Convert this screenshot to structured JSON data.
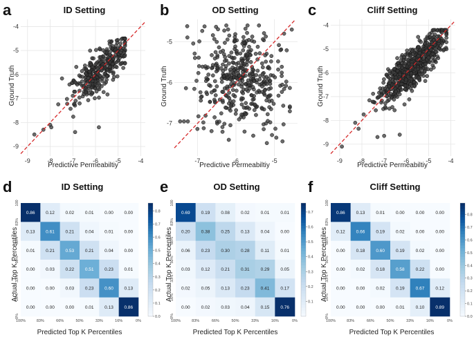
{
  "figure": {
    "panel_letters": [
      "a",
      "b",
      "c",
      "d",
      "e",
      "f"
    ]
  },
  "chart_data": [
    {
      "panel": "a",
      "type": "scatter",
      "title": "ID Setting",
      "xlabel": "Predictive Permeabiltiy",
      "ylabel": "Ground Truth",
      "xlim": [
        -9.3,
        -3.8
      ],
      "ylim": [
        -9.4,
        -3.7
      ],
      "xticks": [
        -9,
        -8,
        -7,
        -6,
        -5,
        -4
      ],
      "yticks": [
        -9,
        -8,
        -7,
        -6,
        -5,
        -4
      ],
      "diagonal": true,
      "grid": true,
      "cloud": {
        "n": 340,
        "center_x": -5.75,
        "center_y": -5.75,
        "spread_along": 0.85,
        "spread_across": 0.32,
        "x_range": [
          -8.2,
          -4.7
        ],
        "y_range": [
          -8.6,
          -4.5
        ],
        "seed": 11
      },
      "extra_points": [
        {
          "x": -8.7,
          "y": -8.5
        },
        {
          "x": -8.0,
          "y": -8.1
        },
        {
          "x": -7.95,
          "y": -8.2
        },
        {
          "x": -8.3,
          "y": -8.3
        },
        {
          "x": -5.85,
          "y": -8.2
        },
        {
          "x": -6.9,
          "y": -8.4
        }
      ]
    },
    {
      "panel": "b",
      "type": "scatter",
      "title": "OD Setting",
      "xlabel": "Predictive Permeabiltiy",
      "ylabel": "Ground Truth",
      "xlim": [
        -7.6,
        -4.4
      ],
      "ylim": [
        -7.8,
        -4.45
      ],
      "xticks": [
        -7,
        -6,
        -5
      ],
      "yticks": [
        -7,
        -6,
        -5
      ],
      "diagonal": true,
      "grid": true,
      "cloud": {
        "n": 420,
        "center_x": -5.9,
        "center_y": -5.95,
        "spread_along": 0.55,
        "spread_across": 0.62,
        "x_range": [
          -7.3,
          -4.6
        ],
        "y_range": [
          -7.65,
          -4.6
        ],
        "seed": 23
      },
      "extra_points": [
        {
          "x": -7.45,
          "y": -6.95
        },
        {
          "x": -7.35,
          "y": -6.95
        },
        {
          "x": -7.25,
          "y": -6.95
        },
        {
          "x": -4.75,
          "y": -4.8
        },
        {
          "x": -4.55,
          "y": -4.7
        }
      ]
    },
    {
      "panel": "c",
      "type": "scatter",
      "title": "Cliff Setting",
      "xlabel": "Predictive Permeabiltiy",
      "ylabel": "Ground Truth",
      "xlim": [
        -9.4,
        -3.8
      ],
      "ylim": [
        -9.5,
        -3.75
      ],
      "xticks": [
        -9,
        -8,
        -7,
        -6,
        -5,
        -4
      ],
      "yticks": [
        -9,
        -8,
        -7,
        -6,
        -5,
        -4
      ],
      "diagonal": true,
      "grid": true,
      "cloud": {
        "n": 650,
        "center_x": -5.75,
        "center_y": -5.75,
        "spread_along": 0.95,
        "spread_across": 0.3,
        "x_range": [
          -8.6,
          -4.2
        ],
        "y_range": [
          -8.8,
          -4.2
        ],
        "seed": 37
      },
      "extra_points": [
        {
          "x": -8.9,
          "y": -9.1
        },
        {
          "x": -8.3,
          "y": -8.1
        },
        {
          "x": -8.15,
          "y": -8.35
        },
        {
          "x": -7.3,
          "y": -8.7
        },
        {
          "x": -7.0,
          "y": -8.65
        },
        {
          "x": -6.3,
          "y": -8.6
        }
      ]
    },
    {
      "panel": "d",
      "type": "heatmap",
      "title": "ID Setting",
      "xlabel": "Predicted Top K Percentiles",
      "ylabel": "Actual Top K Percentiles",
      "xticklabels": [
        "100%",
        "83%",
        "66%",
        "50%",
        "33%",
        "16%",
        "0%"
      ],
      "yticklabels": [
        "100",
        "83%",
        "66%",
        "50%",
        "33%",
        "16%",
        "0%"
      ],
      "values": [
        [
          0.86,
          0.12,
          0.02,
          0.01,
          0.0,
          0.0
        ],
        [
          0.13,
          0.61,
          0.21,
          0.04,
          0.01,
          0.0
        ],
        [
          0.01,
          0.21,
          0.53,
          0.21,
          0.04,
          0.0
        ],
        [
          0.0,
          0.03,
          0.22,
          0.51,
          0.23,
          0.01
        ],
        [
          0.0,
          0.0,
          0.03,
          0.23,
          0.6,
          0.13
        ],
        [
          0.0,
          0.0,
          0.0,
          0.01,
          0.13,
          0.86
        ]
      ],
      "vmax": 0.86,
      "colorbar_ticks": [
        "0.0",
        "0.1",
        "0.2",
        "0.3",
        "0.4",
        "0.5",
        "0.6",
        "0.7",
        "0.8"
      ],
      "colorbar_values": [
        0.0,
        0.1,
        0.2,
        0.3,
        0.4,
        0.5,
        0.6,
        0.7,
        0.8
      ]
    },
    {
      "panel": "e",
      "type": "heatmap",
      "title": "OD Setting",
      "xlabel": "Predicted Top K Percentiles",
      "ylabel": "Actual Top K Percentiles",
      "xticklabels": [
        "100%",
        "83%",
        "66%",
        "50%",
        "33%",
        "16%",
        "0%"
      ],
      "yticklabels": [
        "100",
        "83%",
        "66%",
        "50%",
        "33%",
        "16%",
        "0%"
      ],
      "values": [
        [
          0.69,
          0.19,
          0.08,
          0.02,
          0.01,
          0.01
        ],
        [
          0.2,
          0.38,
          0.25,
          0.13,
          0.04,
          0.0
        ],
        [
          0.06,
          0.23,
          0.3,
          0.28,
          0.11,
          0.01
        ],
        [
          0.03,
          0.12,
          0.21,
          0.31,
          0.29,
          0.05
        ],
        [
          0.02,
          0.05,
          0.13,
          0.23,
          0.41,
          0.17
        ],
        [
          0.0,
          0.02,
          0.03,
          0.04,
          0.15,
          0.76
        ]
      ],
      "vmax": 0.76,
      "colorbar_ticks": [
        "0.1",
        "0.2",
        "0.3",
        "0.4",
        "0.5",
        "0.6",
        "0.7"
      ],
      "colorbar_values": [
        0.1,
        0.2,
        0.3,
        0.4,
        0.5,
        0.6,
        0.7
      ]
    },
    {
      "panel": "f",
      "type": "heatmap",
      "title": "Cliff Setting",
      "xlabel": "Predicted Top K Percentiles",
      "ylabel": "Actual Top K Percentiles",
      "xticklabels": [
        "100%",
        "83%",
        "66%",
        "50%",
        "33%",
        "16%",
        "0%"
      ],
      "yticklabels": [
        "100",
        "83%",
        "66%",
        "50%",
        "33%",
        "16%",
        "0%"
      ],
      "values": [
        [
          0.86,
          0.13,
          0.01,
          0.0,
          0.0,
          0.0
        ],
        [
          0.12,
          0.66,
          0.19,
          0.02,
          0.0,
          0.0
        ],
        [
          0.0,
          0.18,
          0.6,
          0.19,
          0.02,
          0.0
        ],
        [
          0.0,
          0.02,
          0.18,
          0.58,
          0.22,
          0.0
        ],
        [
          0.0,
          0.0,
          0.02,
          0.19,
          0.67,
          0.12
        ],
        [
          0.0,
          0.0,
          0.0,
          0.01,
          0.1,
          0.89
        ]
      ],
      "vmax": 0.89,
      "colorbar_ticks": [
        "0.0",
        "0.1",
        "0.2",
        "0.3",
        "0.4",
        "0.5",
        "0.6",
        "0.7",
        "0.8"
      ],
      "colorbar_values": [
        0.0,
        0.1,
        0.2,
        0.3,
        0.4,
        0.5,
        0.6,
        0.7,
        0.8
      ]
    }
  ],
  "colors": {
    "point_fill": "#3a3a3a",
    "point_stroke": "#111111",
    "diagonal": "#d62728",
    "grid": "#e6e6e6",
    "heatmap_low": "#f7fbff",
    "heatmap_high": "#08306b"
  }
}
